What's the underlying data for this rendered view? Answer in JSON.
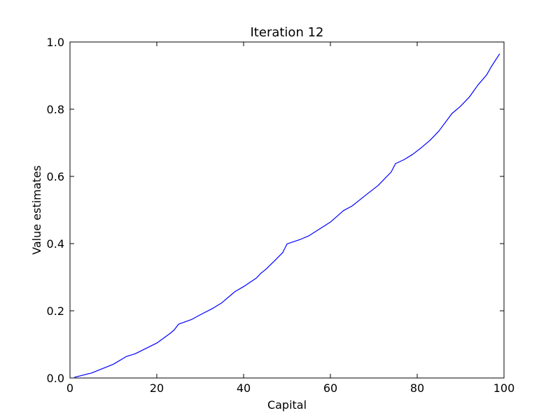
{
  "chart_data": {
    "type": "line",
    "title": "Iteration 12",
    "xlabel": "Capital",
    "ylabel": "Value estimates",
    "xlim": [
      0,
      100
    ],
    "ylim": [
      0.0,
      1.0
    ],
    "xticks": [
      0,
      20,
      40,
      60,
      80,
      100
    ],
    "xtick_labels": [
      "0",
      "20",
      "40",
      "60",
      "80",
      "100"
    ],
    "yticks": [
      0.0,
      0.2,
      0.4,
      0.6,
      0.8,
      1.0
    ],
    "ytick_labels": [
      "0.0",
      "0.2",
      "0.4",
      "0.6",
      "0.8",
      "1.0"
    ],
    "grid": false,
    "series": [
      {
        "color": "#0000ff",
        "x": [
          1,
          5,
          10,
          13,
          15,
          20,
          23,
          24,
          25,
          28,
          30,
          33,
          35,
          38,
          40,
          43,
          44,
          45,
          47,
          49,
          50,
          53,
          55,
          60,
          63,
          65,
          69,
          71,
          74,
          75,
          77,
          79,
          81,
          83,
          85,
          88,
          90,
          92,
          94,
          96,
          97,
          99
        ],
        "y": [
          0.002,
          0.015,
          0.041,
          0.064,
          0.072,
          0.104,
          0.132,
          0.143,
          0.16,
          0.174,
          0.188,
          0.208,
          0.224,
          0.257,
          0.272,
          0.298,
          0.312,
          0.322,
          0.347,
          0.373,
          0.399,
          0.412,
          0.423,
          0.464,
          0.498,
          0.512,
          0.553,
          0.573,
          0.613,
          0.638,
          0.65,
          0.666,
          0.686,
          0.708,
          0.735,
          0.787,
          0.809,
          0.836,
          0.872,
          0.902,
          0.925,
          0.965
        ]
      }
    ]
  }
}
